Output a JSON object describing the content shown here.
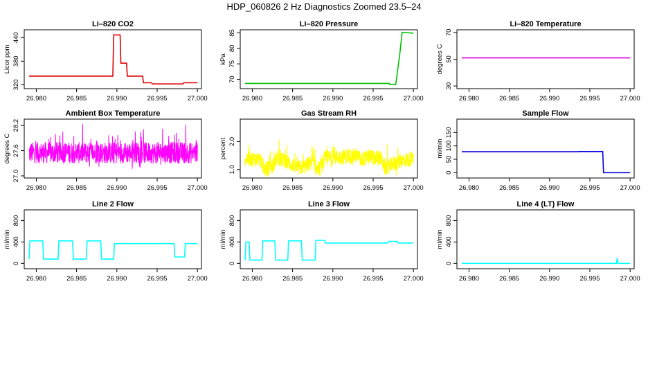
{
  "figure_title": "HDP_060826  2 Hz Diagnostics Zoomed 23.5–24",
  "chart_data": [
    {
      "type": "line",
      "title": "Li–820 CO2",
      "ylabel": "Licor ppm",
      "xlabel": "",
      "xlim": [
        26.9785,
        27.0005
      ],
      "ylim": [
        310,
        460
      ],
      "xticks": [
        26.98,
        26.985,
        26.99,
        26.995,
        27.0
      ],
      "xtick_labels": [
        "26.980",
        "26.985",
        "26.990",
        "26.995",
        "27.000"
      ],
      "yticks": [
        320,
        380,
        440
      ],
      "ytick_labels": [
        "320",
        "380",
        "440"
      ],
      "color": "#e00000",
      "series": [
        {
          "x": [
            26.9791,
            26.9895,
            26.9896,
            26.9904,
            26.9905,
            26.9912,
            26.9913,
            26.9932,
            26.9933,
            26.9943,
            26.9944,
            26.9982,
            26.9983,
            27.0
          ],
          "values": [
            342,
            342,
            447,
            447,
            375,
            375,
            342,
            342,
            325,
            325,
            322,
            322,
            325,
            325
          ]
        }
      ]
    },
    {
      "type": "line",
      "title": "Li–820 Pressure",
      "ylabel": "kPa",
      "xlabel": "",
      "xlim": [
        26.9785,
        27.0005
      ],
      "ylim": [
        67,
        86
      ],
      "xticks": [
        26.98,
        26.985,
        26.99,
        26.995,
        27.0
      ],
      "xtick_labels": [
        "26.980",
        "26.985",
        "26.990",
        "26.995",
        "27.000"
      ],
      "yticks": [
        70,
        75,
        80,
        85
      ],
      "ytick_labels": [
        "70",
        "75",
        "80",
        "85"
      ],
      "color": "#00c000",
      "series": [
        {
          "x": [
            26.9791,
            26.997,
            26.9971,
            26.9978,
            26.9983,
            26.9986,
            26.999,
            27.0
          ],
          "values": [
            68.7,
            68.7,
            68.3,
            68.3,
            78,
            85.2,
            85.1,
            84.9
          ]
        }
      ]
    },
    {
      "type": "line",
      "title": "Li–820 Temperature",
      "ylabel": "degrees C",
      "xlabel": "",
      "xlim": [
        26.9785,
        27.0005
      ],
      "ylim": [
        28,
        72
      ],
      "xticks": [
        26.98,
        26.985,
        26.99,
        26.995,
        27.0
      ],
      "xtick_labels": [
        "26.980",
        "26.985",
        "26.990",
        "26.995",
        "27.000"
      ],
      "yticks": [
        30,
        50,
        70
      ],
      "ytick_labels": [
        "30",
        "50",
        "70"
      ],
      "color": "#e000e0",
      "series": [
        {
          "x": [
            26.9791,
            27.0
          ],
          "values": [
            51,
            51
          ]
        }
      ]
    },
    {
      "type": "line",
      "title": "Ambient Box Temperature",
      "ylabel": "degrees C",
      "xlabel": "",
      "xlim": [
        26.9785,
        27.0005
      ],
      "ylim": [
        26.95,
        28.35
      ],
      "xticks": [
        26.98,
        26.985,
        26.99,
        26.995,
        27.0
      ],
      "xtick_labels": [
        "26.980",
        "26.985",
        "26.990",
        "26.995",
        "27.000"
      ],
      "yticks": [
        27.0,
        27.6,
        28.2
      ],
      "ytick_labels": [
        "27.0",
        "27.6",
        "28.2"
      ],
      "color": "#ff00ff",
      "noise": {
        "mean": 27.55,
        "amplitude": 0.32,
        "count": 900
      },
      "series": [
        {
          "x": [
            26.9791,
            27.0
          ],
          "values": [
            27.55,
            27.55
          ]
        }
      ]
    },
    {
      "type": "line",
      "title": "Gas Stream RH",
      "ylabel": "percent",
      "xlabel": "",
      "xlim": [
        26.9785,
        27.0005
      ],
      "ylim": [
        0.7,
        2.8
      ],
      "xticks": [
        26.98,
        26.985,
        26.99,
        26.995,
        27.0
      ],
      "xtick_labels": [
        "26.980",
        "26.985",
        "26.990",
        "26.995",
        "27.000"
      ],
      "yticks": [
        1.0,
        2.0
      ],
      "ytick_labels": [
        "1.0",
        "2.0"
      ],
      "color": "#ffff00",
      "noise": {
        "amplitude": 0.35,
        "count": 900
      },
      "series": [
        {
          "x": [
            26.9791,
            26.981,
            26.9815,
            26.9825,
            26.983,
            26.9835,
            26.9845,
            26.9855,
            26.9865,
            26.9875,
            26.988,
            26.9885,
            26.989,
            26.993,
            26.9935,
            26.9945,
            26.996,
            26.9965,
            26.997,
            26.9985,
            27.0
          ],
          "values": [
            1.4,
            1.35,
            1.0,
            1.1,
            1.4,
            1.35,
            1.25,
            1.05,
            1.1,
            1.3,
            1.0,
            1.05,
            1.4,
            1.5,
            1.35,
            1.45,
            1.4,
            1.05,
            1.15,
            1.3,
            1.4
          ]
        }
      ]
    },
    {
      "type": "line",
      "title": "Sample Flow",
      "ylabel": "ml/min",
      "xlabel": "",
      "xlim": [
        26.9785,
        27.0005
      ],
      "ylim": [
        -20,
        200
      ],
      "xticks": [
        26.98,
        26.985,
        26.99,
        26.995,
        27.0
      ],
      "xtick_labels": [
        "26.980",
        "26.985",
        "26.990",
        "26.995",
        "27.000"
      ],
      "yticks": [
        0,
        50,
        100,
        150
      ],
      "ytick_labels": [
        "0",
        "50",
        "100",
        "150"
      ],
      "color": "#0000e0",
      "series": [
        {
          "x": [
            26.9791,
            26.9935,
            26.9936,
            26.9966,
            26.9967,
            27.0
          ],
          "values": [
            78,
            78,
            79,
            79,
            0,
            0
          ]
        }
      ]
    },
    {
      "type": "line",
      "title": "Line 2 Flow",
      "ylabel": "ml/min",
      "xlabel": "",
      "xlim": [
        26.9785,
        27.0005
      ],
      "ylim": [
        -100,
        1000
      ],
      "xticks": [
        26.98,
        26.985,
        26.99,
        26.995,
        27.0
      ],
      "xtick_labels": [
        "26.980",
        "26.985",
        "26.990",
        "26.995",
        "27.000"
      ],
      "yticks": [
        0,
        400,
        800
      ],
      "ytick_labels": [
        "0",
        "400",
        "800"
      ],
      "color": "#00ffff",
      "series": [
        {
          "x": [
            26.9791,
            26.9792,
            26.9808,
            26.9809,
            26.9827,
            26.9828,
            26.9845,
            26.9846,
            26.9862,
            26.9863,
            26.988,
            26.9881,
            26.9896,
            26.9897,
            26.9971,
            26.9972,
            26.9984,
            26.9985,
            27.0
          ],
          "values": [
            80,
            420,
            420,
            80,
            80,
            420,
            420,
            80,
            80,
            420,
            420,
            80,
            80,
            370,
            370,
            120,
            120,
            370,
            370
          ]
        }
      ]
    },
    {
      "type": "line",
      "title": "Line 3 Flow",
      "ylabel": "ml/min",
      "xlabel": "",
      "xlim": [
        26.9785,
        27.0005
      ],
      "ylim": [
        -100,
        1000
      ],
      "xticks": [
        26.98,
        26.985,
        26.99,
        26.995,
        27.0
      ],
      "xtick_labels": [
        "26.980",
        "26.985",
        "26.990",
        "26.995",
        "27.000"
      ],
      "yticks": [
        0,
        400,
        800
      ],
      "ytick_labels": [
        "0",
        "400",
        "800"
      ],
      "color": "#00ffff",
      "series": [
        {
          "x": [
            26.9791,
            26.9792,
            26.9796,
            26.9797,
            26.9812,
            26.9813,
            26.9828,
            26.9829,
            26.9844,
            26.9845,
            26.9861,
            26.9862,
            26.9878,
            26.9879,
            26.989,
            26.9891,
            26.9968,
            26.9969,
            26.998,
            26.9981,
            27.0
          ],
          "values": [
            60,
            400,
            400,
            60,
            60,
            420,
            420,
            60,
            60,
            420,
            420,
            60,
            60,
            430,
            430,
            380,
            380,
            410,
            410,
            380,
            380
          ]
        }
      ]
    },
    {
      "type": "line",
      "title": "Line 4 (LT) Flow",
      "ylabel": "ml/min",
      "xlabel": "",
      "xlim": [
        26.9785,
        27.0005
      ],
      "ylim": [
        -100,
        1000
      ],
      "xticks": [
        26.98,
        26.985,
        26.99,
        26.995,
        27.0
      ],
      "xtick_labels": [
        "26.980",
        "26.985",
        "26.990",
        "26.995",
        "27.000"
      ],
      "yticks": [
        0,
        400,
        800
      ],
      "ytick_labels": [
        "0",
        "400",
        "800"
      ],
      "color": "#00ffff",
      "series": [
        {
          "x": [
            26.9791,
            26.9983,
            26.9984,
            26.9985,
            27.0
          ],
          "values": [
            0,
            0,
            100,
            0,
            0
          ]
        }
      ]
    }
  ]
}
